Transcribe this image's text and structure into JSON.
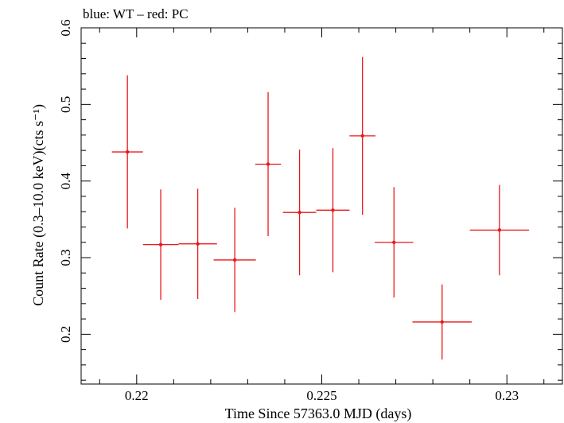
{
  "chart_data": {
    "type": "scatter",
    "title": "blue: WT – red: PC",
    "xlabel": "Time Since 57363.0 MJD (days)",
    "ylabel": "Count Rate (0.3–10.0 keV)(cts s⁻¹)",
    "xlim": [
      0.2185,
      0.2315
    ],
    "ylim": [
      0.135,
      0.6
    ],
    "x_ticks": [
      0.22,
      0.225,
      0.23
    ],
    "x_tick_labels": [
      "0.22",
      "0.225",
      "0.23"
    ],
    "y_ticks": [
      0.2,
      0.3,
      0.4,
      0.5,
      0.6
    ],
    "y_tick_labels": [
      "0.2",
      "0.3",
      "0.4",
      "0.5",
      "0.6"
    ],
    "grid": false,
    "series": [
      {
        "name": "PC",
        "color": "#e8191c",
        "points": [
          {
            "x": 0.21975,
            "xerr": 0.00042,
            "y": 0.438,
            "yerr": 0.1
          },
          {
            "x": 0.22065,
            "xerr": 0.00048,
            "y": 0.317,
            "yerr": 0.072
          },
          {
            "x": 0.22165,
            "xerr": 0.00052,
            "y": 0.318,
            "yerr": 0.072
          },
          {
            "x": 0.22265,
            "xerr": 0.00057,
            "y": 0.297,
            "yerr": 0.068
          },
          {
            "x": 0.22355,
            "xerr": 0.00035,
            "y": 0.422,
            "yerr": 0.094
          },
          {
            "x": 0.2244,
            "xerr": 0.00045,
            "y": 0.359,
            "yerr": 0.082
          },
          {
            "x": 0.2253,
            "xerr": 0.00045,
            "y": 0.362,
            "yerr": 0.081
          },
          {
            "x": 0.2261,
            "xerr": 0.00035,
            "y": 0.459,
            "yerr": 0.103
          },
          {
            "x": 0.22695,
            "xerr": 0.00052,
            "y": 0.32,
            "yerr": 0.072
          },
          {
            "x": 0.22825,
            "xerr": 0.0008,
            "y": 0.216,
            "yerr": 0.049
          },
          {
            "x": 0.2298,
            "xerr": 0.0008,
            "y": 0.336,
            "yerr": 0.059
          }
        ]
      }
    ]
  }
}
